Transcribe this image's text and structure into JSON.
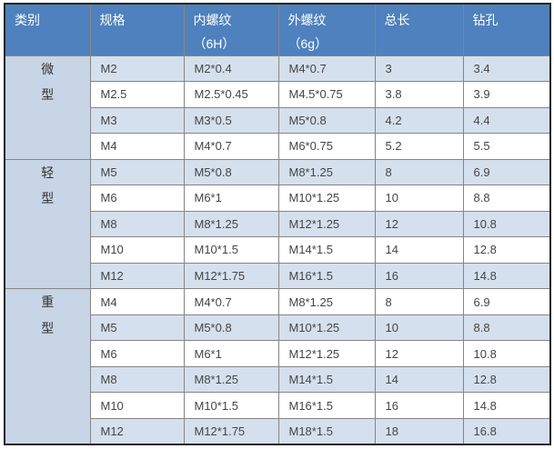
{
  "colors": {
    "header_bg": "#4e81bd",
    "band_bg": "#d5e0ee",
    "category_bg": "#c8d5e6",
    "grid": "#858585",
    "outer": "#262626",
    "header_text": "#ffffff",
    "data_text": "#454545",
    "category_text": "#333333",
    "page_bg": "#ffffff"
  },
  "table": {
    "columns": [
      {
        "title": "类别",
        "subtitle": ""
      },
      {
        "title": "规格",
        "subtitle": ""
      },
      {
        "title": "内螺纹",
        "subtitle": "（6H）"
      },
      {
        "title": "外螺纹",
        "subtitle": "（6g）"
      },
      {
        "title": "总长",
        "subtitle": ""
      },
      {
        "title": "钻孔",
        "subtitle": ""
      }
    ],
    "sections": [
      {
        "category": "微型",
        "rows": [
          [
            "M2",
            "M2*0.4",
            "M4*0.7",
            "3",
            "3.4"
          ],
          [
            "M2.5",
            "M2.5*0.45",
            "M4.5*0.75",
            "3.8",
            "3.9"
          ],
          [
            "M3",
            "M3*0.5",
            "M5*0.8",
            "4.2",
            "4.4"
          ],
          [
            "M4",
            "M4*0.7",
            "M6*0.75",
            "5.2",
            "5.5"
          ]
        ]
      },
      {
        "category": "轻型",
        "rows": [
          [
            "M5",
            "M5*0.8",
            "M8*1.25",
            "8",
            "6.9"
          ],
          [
            "M6",
            "M6*1",
            "M10*1.25",
            "10",
            "8.8"
          ],
          [
            "M8",
            "M8*1.25",
            "M12*1.25",
            "12",
            "10.8"
          ],
          [
            "M10",
            "M10*1.5",
            "M14*1.5",
            "14",
            "12.8"
          ],
          [
            "M12",
            "M12*1.75",
            "M16*1.5",
            "16",
            "14.8"
          ]
        ]
      },
      {
        "category": "重型",
        "rows": [
          [
            "M4",
            "M4*0.7",
            "M8*1.25",
            "8",
            "6.9"
          ],
          [
            "M5",
            "M5*0.8",
            "M10*1.25",
            "10",
            "8.8"
          ],
          [
            "M6",
            "M6*1",
            "M12*1.25",
            "12",
            "10.8"
          ],
          [
            "M8",
            "M8*1.25",
            "M14*1.5",
            "14",
            "12.8"
          ],
          [
            "M10",
            "M10*1.5",
            "M16*1.5",
            "16",
            "14.8"
          ],
          [
            "M12",
            "M12*1.75",
            "M18*1.5",
            "18",
            "16.8"
          ]
        ]
      }
    ]
  },
  "chart_data": {
    "type": "table",
    "title": "",
    "columns": [
      "类别",
      "规格",
      "内螺纹（6H）",
      "外螺纹（6g）",
      "总长",
      "钻孔"
    ],
    "rows": [
      [
        "微型",
        "M2",
        "M2*0.4",
        "M4*0.7",
        "3",
        "3.4"
      ],
      [
        "微型",
        "M2.5",
        "M2.5*0.45",
        "M4.5*0.75",
        "3.8",
        "3.9"
      ],
      [
        "微型",
        "M3",
        "M3*0.5",
        "M5*0.8",
        "4.2",
        "4.4"
      ],
      [
        "微型",
        "M4",
        "M4*0.7",
        "M6*0.75",
        "5.2",
        "5.5"
      ],
      [
        "轻型",
        "M5",
        "M5*0.8",
        "M8*1.25",
        "8",
        "6.9"
      ],
      [
        "轻型",
        "M6",
        "M6*1",
        "M10*1.25",
        "10",
        "8.8"
      ],
      [
        "轻型",
        "M8",
        "M8*1.25",
        "M12*1.25",
        "12",
        "10.8"
      ],
      [
        "轻型",
        "M10",
        "M10*1.5",
        "M14*1.5",
        "14",
        "12.8"
      ],
      [
        "轻型",
        "M12",
        "M12*1.75",
        "M16*1.5",
        "16",
        "14.8"
      ],
      [
        "重型",
        "M4",
        "M4*0.7",
        "M8*1.25",
        "8",
        "6.9"
      ],
      [
        "重型",
        "M5",
        "M5*0.8",
        "M10*1.25",
        "10",
        "8.8"
      ],
      [
        "重型",
        "M6",
        "M6*1",
        "M12*1.25",
        "12",
        "10.8"
      ],
      [
        "重型",
        "M8",
        "M8*1.25",
        "M14*1.5",
        "14",
        "12.8"
      ],
      [
        "重型",
        "M10",
        "M10*1.5",
        "M16*1.5",
        "16",
        "14.8"
      ],
      [
        "重型",
        "M12",
        "M12*1.75",
        "M18*1.5",
        "18",
        "16.8"
      ]
    ],
    "layout_hints": {
      "banded_rows": true,
      "category_column_rowspans": [
        4,
        5,
        6
      ],
      "header_rows": 1
    }
  }
}
